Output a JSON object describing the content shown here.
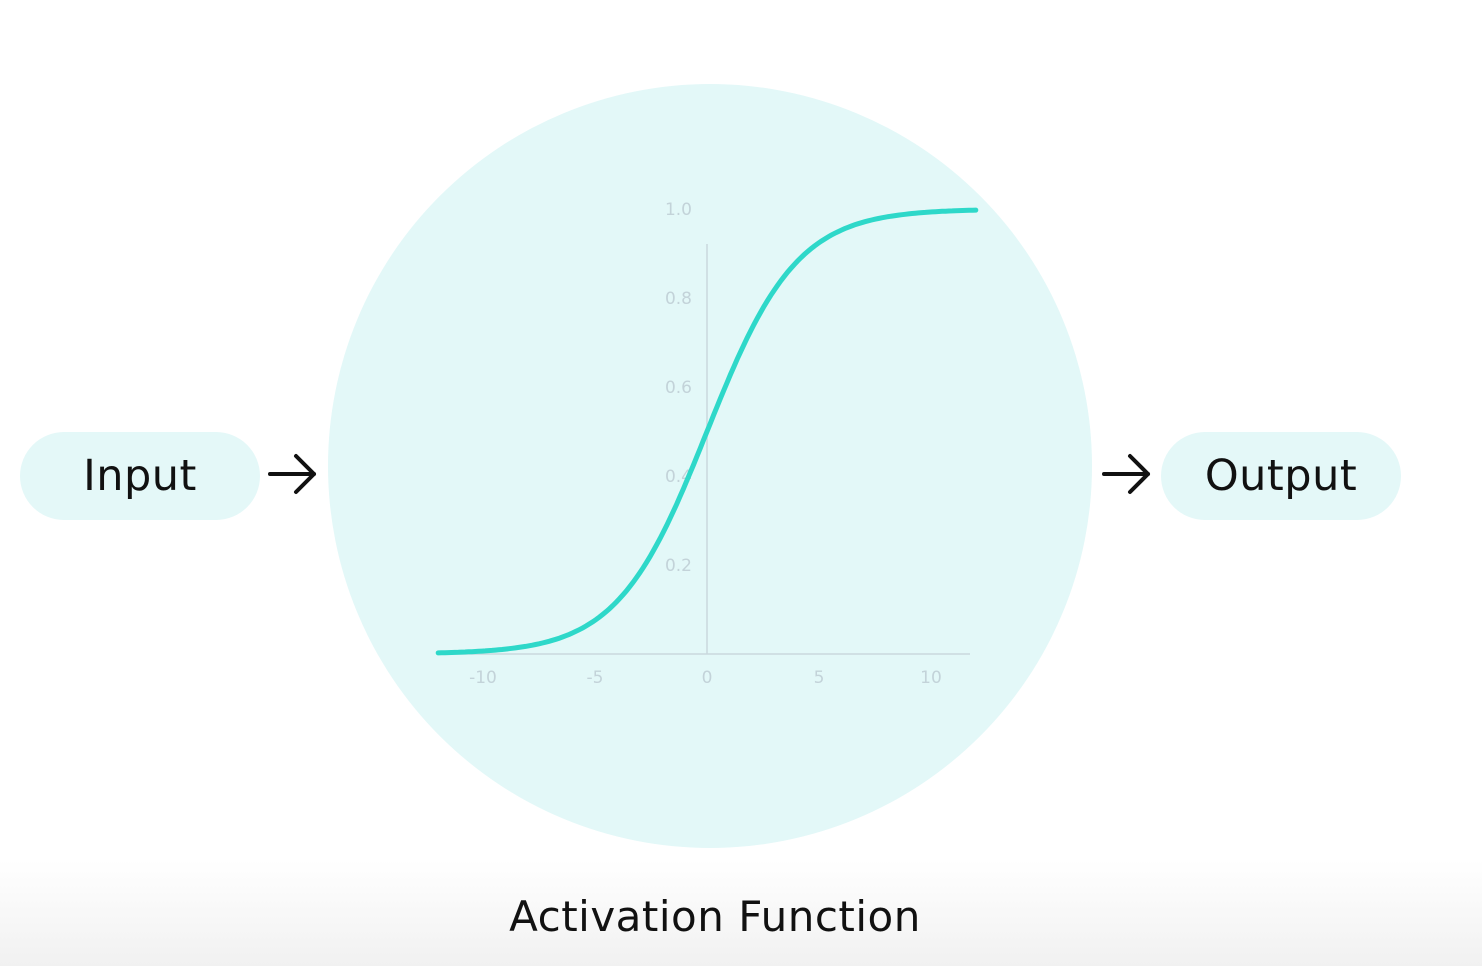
{
  "input_label": "Input",
  "output_label": "Output",
  "caption": "Activation Function",
  "icons": {
    "left_arrow": "arrow-right-icon",
    "right_arrow": "arrow-right-icon"
  },
  "colors": {
    "node_fill": "#e3f8f8",
    "pill_fill": "#e4f8f8",
    "curve": "#2ed8c9",
    "axis": "#c3d3d9"
  },
  "chart_data": {
    "type": "line",
    "function": "sigmoid",
    "x_ticks": [
      "-10",
      "-5",
      "0",
      "5",
      "10"
    ],
    "y_ticks": [
      "1.0",
      "0.8",
      "0.6",
      "0.4",
      "0.2"
    ],
    "x_range": [
      -12,
      12
    ],
    "y_range": [
      0,
      1
    ]
  }
}
